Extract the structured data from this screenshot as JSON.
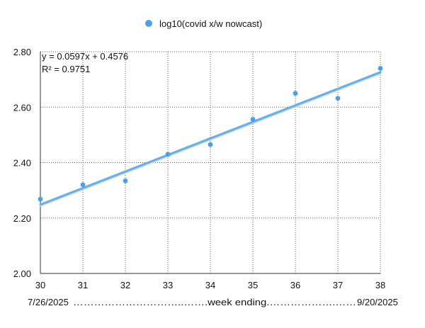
{
  "chart_data": {
    "type": "scatter",
    "title": "",
    "xlabel": "",
    "ylabel": "",
    "xlim": [
      30,
      38
    ],
    "ylim": [
      2.0,
      2.8
    ],
    "x_ticks": [
      "30",
      "31",
      "32",
      "33",
      "34",
      "35",
      "36",
      "37",
      "38"
    ],
    "y_ticks": [
      "2.00",
      "2.20",
      "2.40",
      "2.60",
      "2.80"
    ],
    "grid": {
      "x": "dotted",
      "y": "dotted"
    },
    "legend": {
      "position": "top-center"
    },
    "series": [
      {
        "name": "log10(covid x/w nowcast)",
        "color": "#4a9fe6",
        "points": [
          {
            "x": 30,
            "y": 2.268
          },
          {
            "x": 31,
            "y": 2.32
          },
          {
            "x": 32,
            "y": 2.334
          },
          {
            "x": 33,
            "y": 2.43
          },
          {
            "x": 34,
            "y": 2.465
          },
          {
            "x": 35,
            "y": 2.556
          },
          {
            "x": 36,
            "y": 2.65
          },
          {
            "x": 37,
            "y": 2.632
          },
          {
            "x": 38,
            "y": 2.74
          }
        ]
      }
    ],
    "trendline": {
      "type": "linear",
      "slope": 0.0597,
      "intercept": 0.4576,
      "color": "#6aaee6",
      "equation": "y = 0.0597x + 0.4576",
      "r_squared": "R² = 0.9751"
    },
    "footer": {
      "start": "7/26/2025",
      "middle": "…………………………..…….week ending.……………….……",
      "end": "9/20/2025"
    }
  }
}
